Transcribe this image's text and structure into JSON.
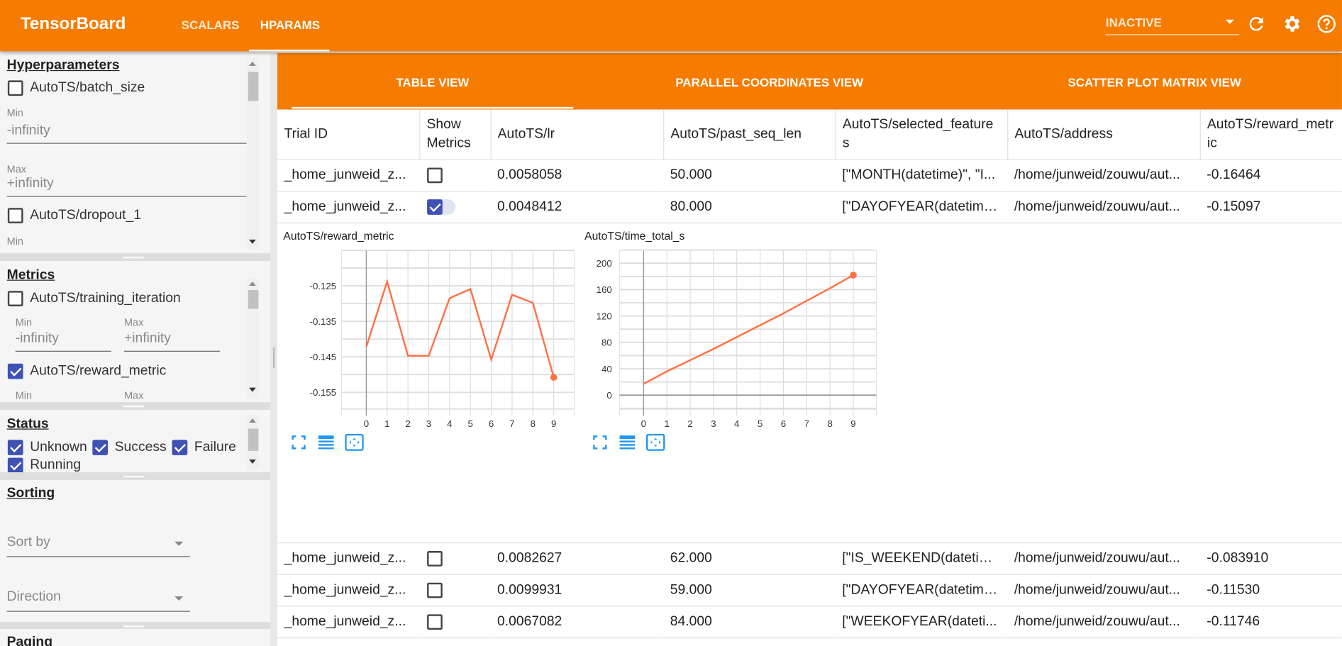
{
  "header": {
    "brand": "TensorBoard",
    "nav": [
      {
        "label": "SCALARS",
        "active": false
      },
      {
        "label": "HPARAMS",
        "active": true
      }
    ],
    "run_selector": "INACTIVE",
    "icons": [
      "refresh-icon",
      "settings-icon",
      "help-icon"
    ],
    "color": "#f57c00"
  },
  "sidebar": {
    "hyperparameters": {
      "title": "Hyperparameters",
      "items": [
        {
          "label": "AutoTS/batch_size",
          "checked": false,
          "min_label": "Min",
          "min": "-infinity",
          "max_label": "Max",
          "max": "+infinity"
        },
        {
          "label": "AutoTS/dropout_1",
          "checked": false,
          "min_label": "Min"
        }
      ]
    },
    "metrics": {
      "title": "Metrics",
      "items": [
        {
          "label": "AutoTS/training_iteration",
          "checked": false,
          "min_label": "Min",
          "min": "-infinity",
          "max_label": "Max",
          "max": "+infinity"
        },
        {
          "label": "AutoTS/reward_metric",
          "checked": true,
          "min_label": "Min",
          "max_label": "Max"
        }
      ]
    },
    "status": {
      "title": "Status",
      "items": [
        {
          "label": "Unknown",
          "checked": true
        },
        {
          "label": "Success",
          "checked": true
        },
        {
          "label": "Failure",
          "checked": true
        },
        {
          "label": "Running",
          "checked": true
        }
      ]
    },
    "sorting": {
      "title": "Sorting",
      "sort_by": "Sort by",
      "direction": "Direction"
    },
    "paging": {
      "title": "Paging"
    }
  },
  "tabs": [
    {
      "label": "TABLE VIEW",
      "active": true
    },
    {
      "label": "PARALLEL COORDINATES VIEW"
    },
    {
      "label": "SCATTER PLOT MATRIX VIEW"
    }
  ],
  "table": {
    "columns": [
      "Trial ID",
      "Show Metrics",
      "AutoTS/lr",
      "AutoTS/past_seq_len",
      "AutoTS/selected_features",
      "AutoTS/address",
      "AutoTS/reward_metric"
    ],
    "rows": [
      {
        "trial": "_home_junweid_z...",
        "show": false,
        "lr": "0.0058058",
        "past": "50.000",
        "features": "[\"MONTH(datetime)\", \"I...",
        "address": "/home/junweid/zouwu/aut...",
        "reward": "-0.16464"
      },
      {
        "trial": "_home_junweid_z...",
        "show": true,
        "lr": "0.0048412",
        "past": "80.000",
        "features": "[\"DAYOFYEAR(datetime...",
        "address": "/home/junweid/zouwu/aut...",
        "reward": "-0.15097"
      },
      {
        "trial": "_home_junweid_z...",
        "show": false,
        "lr": "0.0082627",
        "past": "62.000",
        "features": "[\"IS_WEEKEND(datetim...",
        "address": "/home/junweid/zouwu/aut...",
        "reward": "-0.083910"
      },
      {
        "trial": "_home_junweid_z...",
        "show": false,
        "lr": "0.0099931",
        "past": "59.000",
        "features": "[\"DAYOFYEAR(datetime...",
        "address": "/home/junweid/zouwu/aut...",
        "reward": "-0.11530"
      },
      {
        "trial": "_home_junweid_z...",
        "show": false,
        "lr": "0.0067082",
        "past": "84.000",
        "features": "[\"WEEKOFYEAR(dateti...",
        "address": "/home/junweid/zouwu/aut...",
        "reward": "-0.11746"
      }
    ]
  },
  "chart_data": [
    {
      "type": "line",
      "title": "AutoTS/reward_metric",
      "x": [
        0,
        1,
        2,
        3,
        4,
        5,
        6,
        7,
        8,
        9
      ],
      "y": [
        -0.1422,
        -0.1238,
        -0.1447,
        -0.1447,
        -0.1285,
        -0.1259,
        -0.1458,
        -0.1275,
        -0.1298,
        -0.1508
      ],
      "xticks": [
        "0",
        "1",
        "2",
        "3",
        "4",
        "5",
        "6",
        "7",
        "8",
        "9"
      ],
      "yticks": [
        "-0.125",
        "-0.135",
        "-0.145",
        "-0.155"
      ],
      "ylim": [
        -0.1597,
        -0.1151
      ],
      "xlim": [
        -1.2,
        10
      ],
      "grid": true,
      "color": "#ff7043"
    },
    {
      "type": "line",
      "title": "AutoTS/time_total_s",
      "x": [
        0,
        1,
        2,
        3,
        4,
        5,
        6,
        7,
        8,
        9
      ],
      "y": [
        17,
        36,
        53,
        70,
        88,
        106,
        124,
        143,
        162,
        182
      ],
      "xticks": [
        "0",
        "1",
        "2",
        "3",
        "4",
        "5",
        "6",
        "7",
        "8",
        "9"
      ],
      "yticks": [
        "0",
        "40",
        "80",
        "120",
        "160",
        "200"
      ],
      "ylim": [
        -21,
        219
      ],
      "xlim": [
        -1,
        10
      ],
      "grid": true,
      "color": "#ff7043"
    }
  ],
  "chart_toolbar_icons": [
    "fit-domain-icon",
    "toggle-log-scale-icon",
    "zoom-reset-icon"
  ]
}
